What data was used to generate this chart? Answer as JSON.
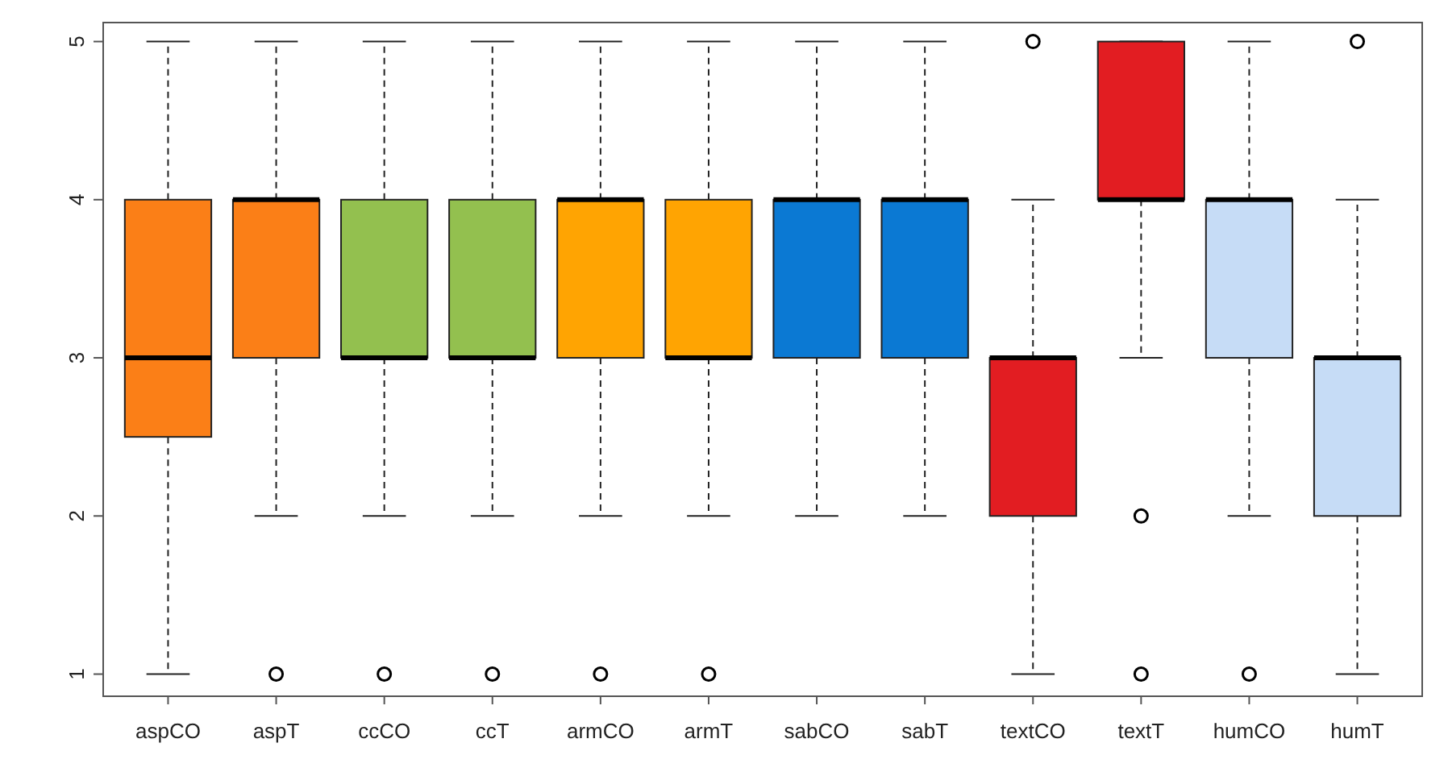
{
  "chart_data": {
    "type": "box",
    "categories": [
      "aspCO",
      "aspT",
      "ccCO",
      "ccT",
      "armCO",
      "armT",
      "sabCO",
      "sabT",
      "textCO",
      "textT",
      "humCO",
      "humT"
    ],
    "colors": [
      "#fb7f17",
      "#fb7f17",
      "#93c04f",
      "#93c04f",
      "#ffa402",
      "#ffa402",
      "#0b79d3",
      "#0b79d3",
      "#e21d22",
      "#e21d22",
      "#c6dcf6",
      "#c6dcf6"
    ],
    "boxes": [
      {
        "low": 1,
        "q1": 2.5,
        "median": 3,
        "q3": 4,
        "high": 5
      },
      {
        "low": 2,
        "q1": 3,
        "median": 4,
        "q3": 4,
        "high": 5,
        "outliers": [
          1
        ]
      },
      {
        "low": 2,
        "q1": 3,
        "median": 3,
        "q3": 4,
        "high": 5,
        "outliers": [
          1
        ]
      },
      {
        "low": 2,
        "q1": 3,
        "median": 3,
        "q3": 4,
        "high": 5,
        "outliers": [
          1
        ]
      },
      {
        "low": 2,
        "q1": 3,
        "median": 4,
        "q3": 4,
        "high": 5,
        "outliers": [
          1
        ]
      },
      {
        "low": 2,
        "q1": 3,
        "median": 3,
        "q3": 4,
        "high": 5,
        "outliers": [
          1
        ]
      },
      {
        "low": 2,
        "q1": 3,
        "median": 4,
        "q3": 4,
        "high": 5
      },
      {
        "low": 2,
        "q1": 3,
        "median": 4,
        "q3": 4,
        "high": 5
      },
      {
        "low": 1,
        "q1": 2,
        "median": 3,
        "q3": 3,
        "high": 4,
        "outliers": [
          5
        ]
      },
      {
        "low": 3,
        "q1": 4,
        "median": 4,
        "q3": 5,
        "high": 5,
        "outliers": [
          2,
          1
        ]
      },
      {
        "low": 2,
        "q1": 3,
        "median": 4,
        "q3": 4,
        "high": 5,
        "outliers": [
          1
        ]
      },
      {
        "low": 1,
        "q1": 2,
        "median": 3,
        "q3": 3,
        "high": 4,
        "outliers": [
          5
        ]
      }
    ],
    "ylim": [
      0.86,
      5.12
    ],
    "yticks": [
      1,
      2,
      3,
      4,
      5
    ],
    "grid": false
  }
}
